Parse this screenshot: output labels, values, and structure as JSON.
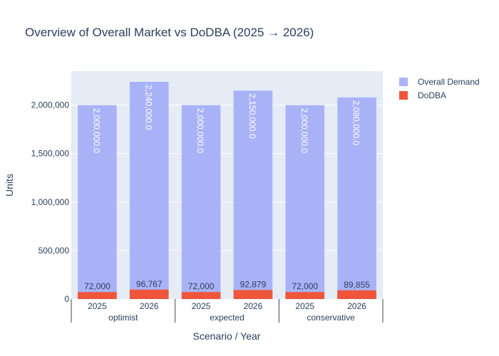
{
  "chart_data": {
    "type": "bar",
    "barmode": "overlay",
    "title": "Overview of Overall Market vs DoDBA (2025 → 2026)",
    "xlabel": "Scenario / Year",
    "ylabel": "Units",
    "ylim": [
      0,
      2350000
    ],
    "yticks": [
      0,
      500000,
      1000000,
      1500000,
      2000000
    ],
    "ytick_labels": [
      "0",
      "500,000",
      "1,000,000",
      "1,500,000",
      "2,000,000"
    ],
    "groups": [
      {
        "name": "optimist",
        "years": [
          "2025",
          "2026"
        ]
      },
      {
        "name": "expected",
        "years": [
          "2025",
          "2026"
        ]
      },
      {
        "name": "conservative",
        "years": [
          "2025",
          "2026"
        ]
      }
    ],
    "series": [
      {
        "name": "Overall Demand",
        "color": "#aab2f7",
        "values": [
          2000000,
          2240000,
          2000000,
          2150000,
          2000000,
          2080000
        ],
        "labels": [
          "2,000,000.0",
          "2,240,000.0",
          "2,000,000.0",
          "2,150,000.0",
          "2,000,000.0",
          "2,080,000.0"
        ]
      },
      {
        "name": "DoDBA",
        "color": "#ef553b",
        "values": [
          72000,
          96767,
          72000,
          92879,
          72000,
          89855
        ],
        "labels": [
          "72,000",
          "96,767",
          "72,000",
          "92,879",
          "72,000",
          "89,855"
        ]
      }
    ],
    "grid": true,
    "legend_position": "top-right"
  }
}
